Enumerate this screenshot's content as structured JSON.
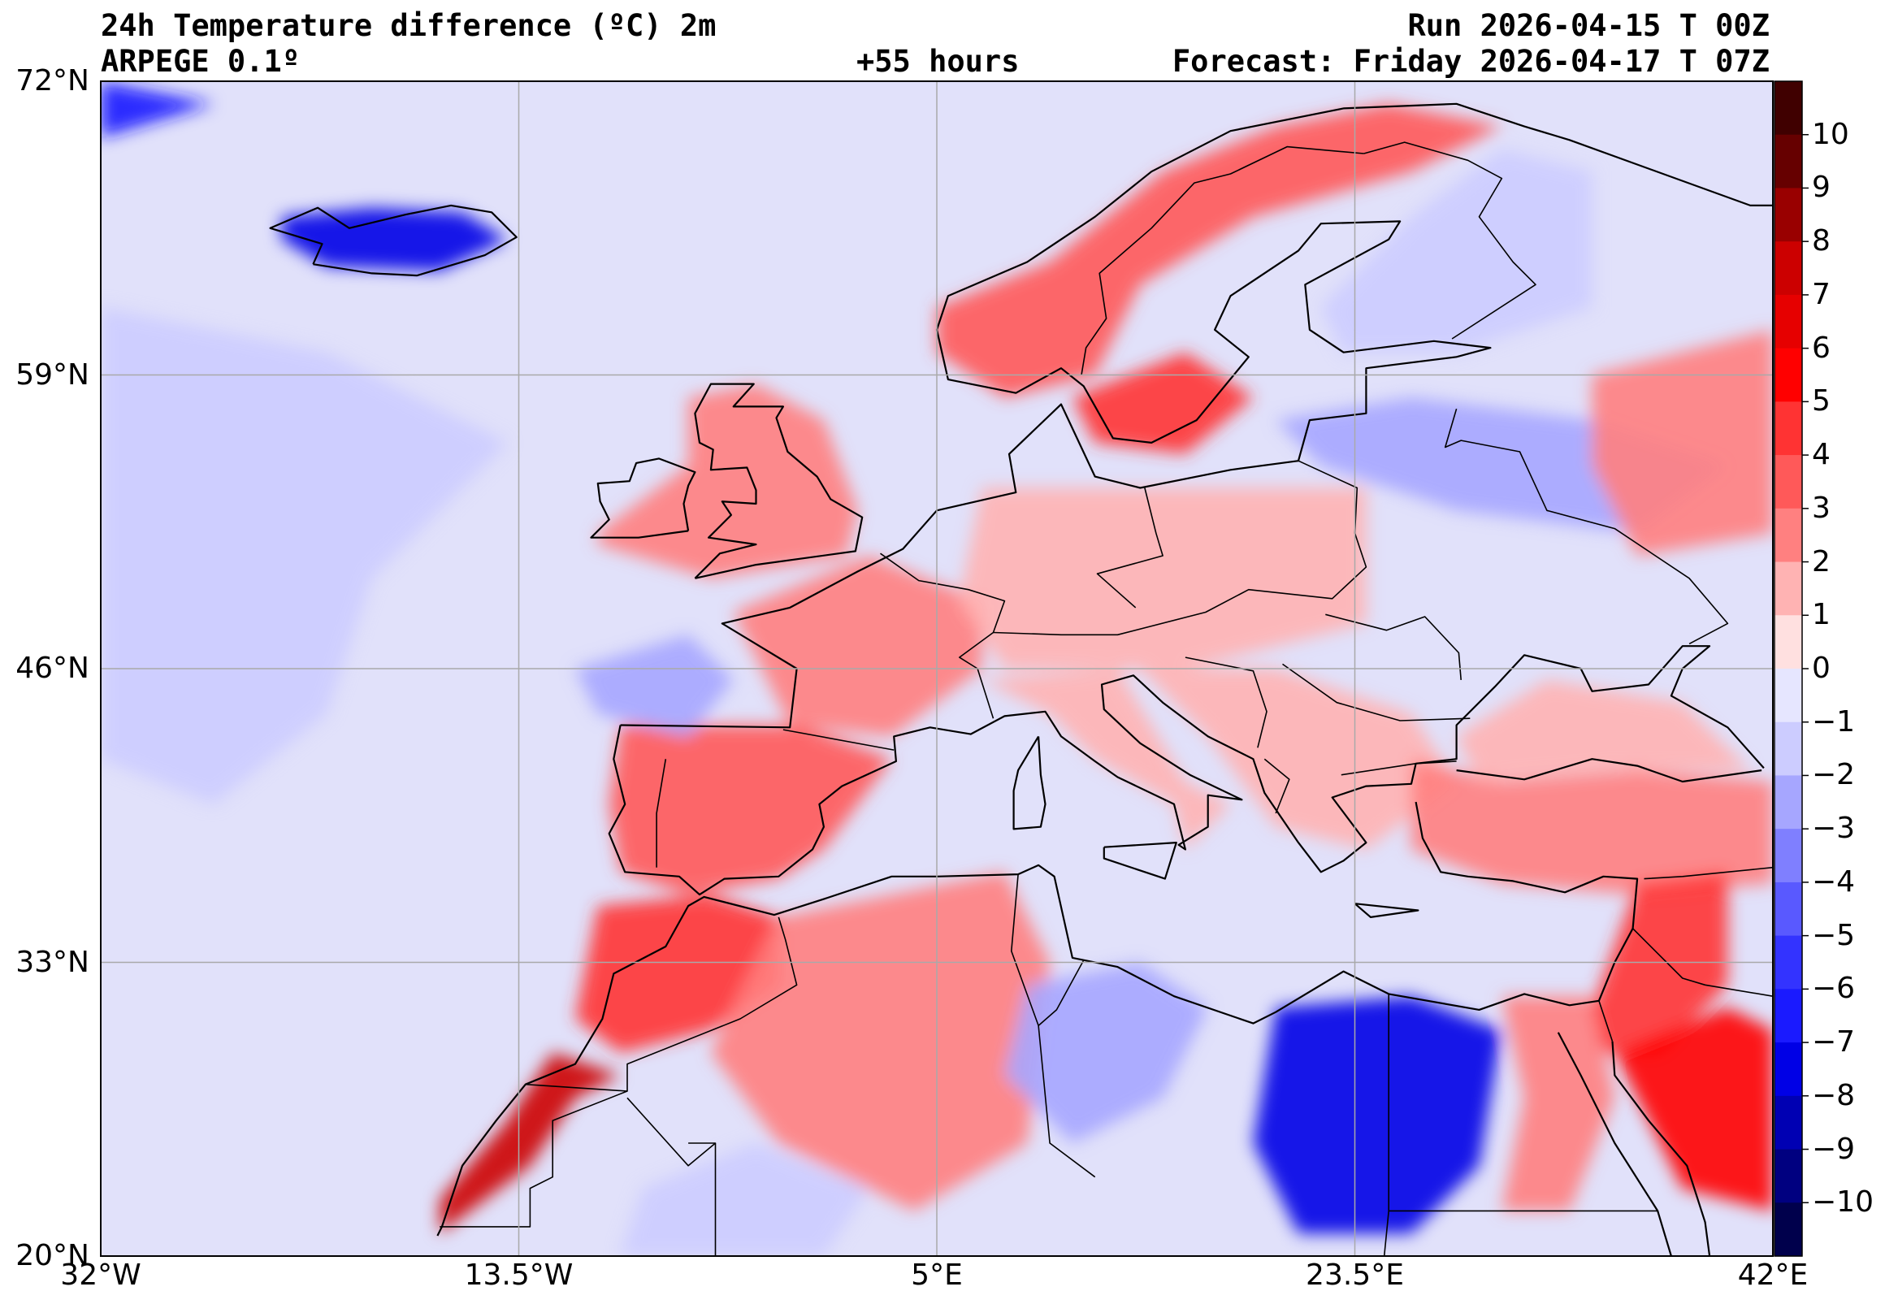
{
  "header": {
    "title_left": "24h Temperature difference (ºC) 2m",
    "model": "ARPEGE 0.1º",
    "lead_time": "+55 hours",
    "run": "Run 2026-04-15 T 00Z",
    "forecast": "Forecast: Friday 2026-04-17 T 07Z"
  },
  "map": {
    "projection": "plate-carree",
    "extent": {
      "lon_min": -32,
      "lon_max": 42,
      "lat_min": 20,
      "lat_max": 72
    },
    "lat_ticks": [
      {
        "value": 72,
        "label": "72°N"
      },
      {
        "value": 59,
        "label": "59°N"
      },
      {
        "value": 46,
        "label": "46°N"
      },
      {
        "value": 33,
        "label": "33°N"
      },
      {
        "value": 20,
        "label": "20°N"
      }
    ],
    "lon_ticks": [
      {
        "value": -32,
        "label": "32°W"
      },
      {
        "value": -13.5,
        "label": "13.5°W"
      },
      {
        "value": 5,
        "label": "5°E"
      },
      {
        "value": 23.5,
        "label": "23.5°E"
      },
      {
        "value": 42,
        "label": "42°E"
      }
    ],
    "grid": true,
    "ocean_color": "#e1e1fa",
    "regions": [
      {
        "name": "iceland",
        "value": -8
      },
      {
        "name": "greenland-east",
        "value": -7
      },
      {
        "name": "norway-north",
        "value": 3
      },
      {
        "name": "sweden-south",
        "value": 4
      },
      {
        "name": "finland",
        "value": -2
      },
      {
        "name": "baltic-russia",
        "value": -3
      },
      {
        "name": "western-russia",
        "value": 2
      },
      {
        "name": "british-isles",
        "value": 2
      },
      {
        "name": "france",
        "value": 2
      },
      {
        "name": "central-europe",
        "value": 1
      },
      {
        "name": "iberia",
        "value": 3
      },
      {
        "name": "italy",
        "value": 1
      },
      {
        "name": "balkans",
        "value": 1
      },
      {
        "name": "turkey",
        "value": 2
      },
      {
        "name": "black-sea",
        "value": 1
      },
      {
        "name": "atlantic-cold-pool",
        "value": -2
      },
      {
        "name": "bay-of-biscay",
        "value": -3
      },
      {
        "name": "morocco",
        "value": 4
      },
      {
        "name": "western-sahara",
        "value": 7
      },
      {
        "name": "algeria",
        "value": 2
      },
      {
        "name": "libya-west",
        "value": -3
      },
      {
        "name": "libya-egypt-desert",
        "value": -8
      },
      {
        "name": "egypt-nile",
        "value": 2
      },
      {
        "name": "levant",
        "value": 4
      },
      {
        "name": "arabia-north",
        "value": 5
      },
      {
        "name": "mauritania-mali",
        "value": -2
      }
    ]
  },
  "colorbar": {
    "levels": [
      -10,
      -9,
      -8,
      -7,
      -6,
      -5,
      -4,
      -3,
      -2,
      -1,
      0,
      1,
      2,
      3,
      4,
      5,
      6,
      7,
      8,
      9,
      10
    ],
    "labels": [
      "10",
      "9",
      "8",
      "7",
      "6",
      "5",
      "4",
      "3",
      "2",
      "1",
      "0",
      "−1",
      "−2",
      "−3",
      "−4",
      "−5",
      "−6",
      "−7",
      "−8",
      "−9",
      "−10"
    ],
    "colors": [
      "#00004c",
      "#000080",
      "#0000b3",
      "#0000e6",
      "#1a1aff",
      "#3333ff",
      "#5959ff",
      "#7f7fff",
      "#a6a6ff",
      "#ccccff",
      "#e6e6ff",
      "#ffe0e0",
      "#ffb3b3",
      "#ff8080",
      "#ff5959",
      "#ff3333",
      "#ff0000",
      "#e60000",
      "#cc0000",
      "#990000",
      "#660000",
      "#400000"
    ]
  }
}
